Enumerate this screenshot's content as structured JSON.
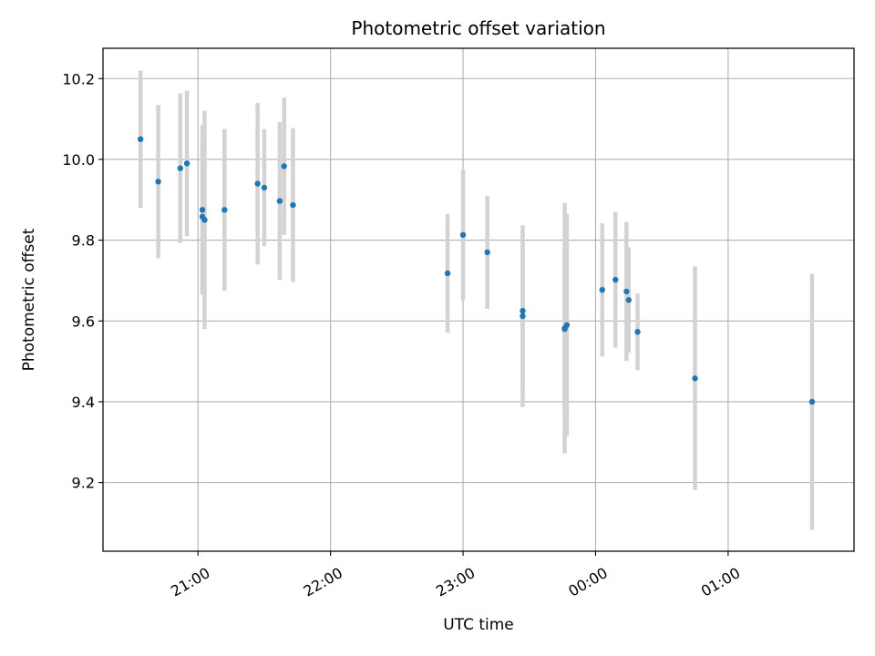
{
  "chart_data": {
    "type": "scatter",
    "title": "Photometric offset variation",
    "xlabel": "UTC time",
    "ylabel": "Photometric offset",
    "x_unit": "UTC time",
    "xlim": [
      "20:17",
      "01:57"
    ],
    "ylim": [
      9.03,
      10.275
    ],
    "grid": true,
    "x_ticks": [
      "21:00",
      "22:00",
      "23:00",
      "00:00",
      "01:00"
    ],
    "y_ticks": [
      "9.2",
      "9.4",
      "9.6",
      "9.8",
      "10.0",
      "10.2"
    ],
    "marker_color": "#1f77b4",
    "errorbar_color": "#d3d3d3",
    "series": [
      {
        "points": [
          {
            "x": "20:34",
            "y": 10.05,
            "yerr": 0.17
          },
          {
            "x": "20:42",
            "y": 9.945,
            "yerr": 0.19
          },
          {
            "x": "20:52",
            "y": 9.978,
            "yerr": 0.185
          },
          {
            "x": "20:55",
            "y": 9.99,
            "yerr": 0.18
          },
          {
            "x": "21:02",
            "y": 9.875,
            "yerr": 0.21
          },
          {
            "x": "21:02",
            "y": 9.858,
            "yerr": 0.19
          },
          {
            "x": "21:03",
            "y": 9.85,
            "yerr": 0.27
          },
          {
            "x": "21:12",
            "y": 9.875,
            "yerr": 0.2
          },
          {
            "x": "21:27",
            "y": 9.94,
            "yerr": 0.2
          },
          {
            "x": "21:30",
            "y": 9.93,
            "yerr": 0.145
          },
          {
            "x": "21:37",
            "y": 9.897,
            "yerr": 0.195
          },
          {
            "x": "21:39",
            "y": 9.983,
            "yerr": 0.17
          },
          {
            "x": "21:43",
            "y": 9.887,
            "yerr": 0.19
          },
          {
            "x": "22:53",
            "y": 9.718,
            "yerr": 0.147
          },
          {
            "x": "23:00",
            "y": 9.813,
            "yerr": 0.162
          },
          {
            "x": "23:11",
            "y": 9.77,
            "yerr": 0.14
          },
          {
            "x": "23:27",
            "y": 9.625,
            "yerr": 0.2
          },
          {
            "x": "23:27",
            "y": 9.612,
            "yerr": 0.225
          },
          {
            "x": "23:46",
            "y": 9.58,
            "yerr": 0.21
          },
          {
            "x": "23:46",
            "y": 9.582,
            "yerr": 0.31
          },
          {
            "x": "23:47",
            "y": 9.59,
            "yerr": 0.275
          },
          {
            "x": "00:03",
            "y": 9.677,
            "yerr": 0.165
          },
          {
            "x": "00:09",
            "y": 9.702,
            "yerr": 0.168
          },
          {
            "x": "00:14",
            "y": 9.673,
            "yerr": 0.172
          },
          {
            "x": "00:15",
            "y": 9.652,
            "yerr": 0.13
          },
          {
            "x": "00:19",
            "y": 9.573,
            "yerr": 0.095
          },
          {
            "x": "00:45",
            "y": 9.458,
            "yerr": 0.277
          },
          {
            "x": "01:38",
            "y": 9.4,
            "yerr": 0.317
          }
        ]
      }
    ]
  }
}
